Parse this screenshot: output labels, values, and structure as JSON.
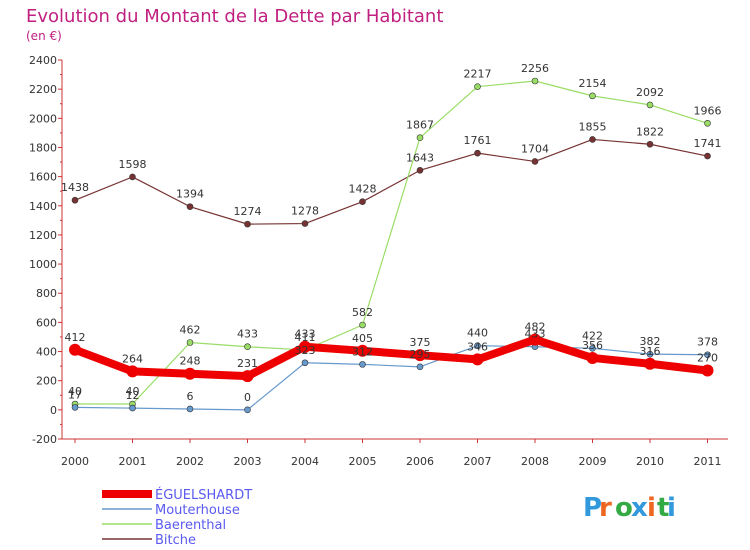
{
  "chart_data": {
    "type": "line",
    "title": "Evolution du Montant de la Dette par Habitant",
    "subtitle": "(en €)",
    "categories": [
      "2000",
      "2001",
      "2002",
      "2003",
      "2004",
      "2005",
      "2006",
      "2007",
      "2008",
      "2009",
      "2010",
      "2011"
    ],
    "ylim": [
      -200,
      2400
    ],
    "yticks": [
      -200,
      0,
      200,
      400,
      600,
      800,
      1000,
      1200,
      1400,
      1600,
      1800,
      2000,
      2200,
      2400
    ],
    "grid": false,
    "legend_position": "bottom-left",
    "series": [
      {
        "name": "ÉGUELSHARDT",
        "color": "#ee0000",
        "values": [
          412,
          264,
          248,
          231,
          433,
          405,
          375,
          346,
          482,
          356,
          316,
          270
        ]
      },
      {
        "name": "Mouterhouse",
        "color": "#6699cc",
        "values": [
          17,
          12,
          6,
          0,
          323,
          312,
          295,
          440,
          433,
          422,
          382,
          378
        ]
      },
      {
        "name": "Baerenthal",
        "color": "#99dd66",
        "values": [
          40,
          40,
          462,
          433,
          411,
          582,
          1867,
          2217,
          2256,
          2154,
          2092,
          1966
        ]
      },
      {
        "name": "Bitche",
        "color": "#773333",
        "values": [
          1438,
          1598,
          1394,
          1274,
          1278,
          1428,
          1643,
          1761,
          1704,
          1855,
          1822,
          1741
        ]
      }
    ]
  },
  "logo": {
    "text": "Proxiti"
  }
}
